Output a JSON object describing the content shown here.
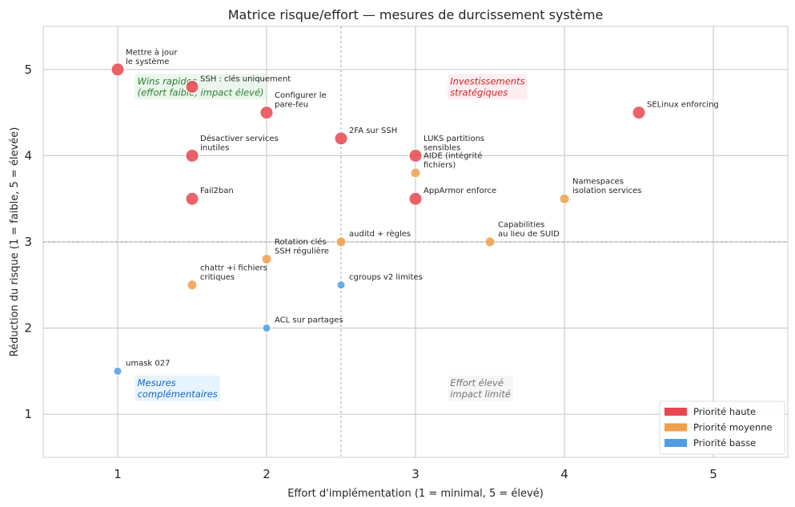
{
  "chart_data": {
    "type": "scatter",
    "title": "Matrice risque/effort — mesures de durcissement système",
    "xlabel": "Effort d'implémentation (1 = minimal, 5 = élevé)",
    "ylabel": "Réduction du risque (1 = faible, 5 = élevée)",
    "xlim": [
      0.5,
      5.5
    ],
    "ylim": [
      0.5,
      5.5
    ],
    "xticks": [
      1,
      2,
      3,
      4,
      5
    ],
    "yticks": [
      1,
      2,
      3,
      4,
      5
    ],
    "grid": true,
    "threshold_x": 2.5,
    "threshold_y": 3,
    "priority_colors": {
      "haute": "#e8474f",
      "moyenne": "#f0a04b",
      "basse": "#4e9de6"
    },
    "points": [
      {
        "label": "Mettre à jour\nle système",
        "x": 1,
        "y": 5,
        "priority": "haute"
      },
      {
        "label": "SSH : clés uniquement",
        "x": 1.5,
        "y": 4.8,
        "priority": "haute"
      },
      {
        "label": "Configurer le\npare-feu",
        "x": 2,
        "y": 4.5,
        "priority": "haute"
      },
      {
        "label": "2FA sur SSH",
        "x": 2.5,
        "y": 4.2,
        "priority": "haute"
      },
      {
        "label": "Désactiver services\ninutiles",
        "x": 1.5,
        "y": 4,
        "priority": "haute"
      },
      {
        "label": "Fail2ban",
        "x": 1.5,
        "y": 3.5,
        "priority": "haute"
      },
      {
        "label": "LUKS partitions\nsensibles",
        "x": 3,
        "y": 4,
        "priority": "haute"
      },
      {
        "label": "AppArmor enforce",
        "x": 3,
        "y": 3.5,
        "priority": "haute"
      },
      {
        "label": "SELinux enforcing",
        "x": 4.5,
        "y": 4.5,
        "priority": "haute"
      },
      {
        "label": "AIDE (intégrité\nfichiers)",
        "x": 3,
        "y": 3.8,
        "priority": "moyenne"
      },
      {
        "label": "Namespaces\nisolation services",
        "x": 4,
        "y": 3.5,
        "priority": "moyenne"
      },
      {
        "label": "auditd + règles",
        "x": 2.5,
        "y": 3,
        "priority": "moyenne"
      },
      {
        "label": "Capabilities\nau lieu de SUID",
        "x": 3.5,
        "y": 3,
        "priority": "moyenne"
      },
      {
        "label": "Rotation clés\nSSH régulière",
        "x": 2,
        "y": 2.8,
        "priority": "moyenne"
      },
      {
        "label": "chattr +i fichiers\ncritiques",
        "x": 1.5,
        "y": 2.5,
        "priority": "moyenne"
      },
      {
        "label": "cgroups v2 limites",
        "x": 2.5,
        "y": 2.5,
        "priority": "basse"
      },
      {
        "label": "ACL sur partages",
        "x": 2,
        "y": 2,
        "priority": "basse"
      },
      {
        "label": "umask 027",
        "x": 1,
        "y": 1.5,
        "priority": "basse"
      }
    ],
    "quadrants": [
      {
        "text": "Wins rapides\n(effort faible, impact élevé)",
        "x": 1.1,
        "y": 4.8,
        "text_color": "#2e7d32",
        "bg": "#e8f5e9"
      },
      {
        "text": "Investissements\nstratégiques",
        "x": 3.2,
        "y": 4.8,
        "text_color": "#c62828",
        "bg": "#ffebee"
      },
      {
        "text": "Mesures\ncomplémentaires",
        "x": 1.1,
        "y": 1.3,
        "text_color": "#1565c0",
        "bg": "#e3f2fd"
      },
      {
        "text": "Effort élevé\nimpact limité",
        "x": 3.2,
        "y": 1.3,
        "text_color": "#757575",
        "bg": "#f5f5f5"
      }
    ],
    "legend": {
      "position": "lower-right",
      "entries": [
        {
          "label": "Priorité haute",
          "color": "#e8474f"
        },
        {
          "label": "Priorité moyenne",
          "color": "#f0a04b"
        },
        {
          "label": "Priorité basse",
          "color": "#4e9de6"
        }
      ]
    }
  }
}
